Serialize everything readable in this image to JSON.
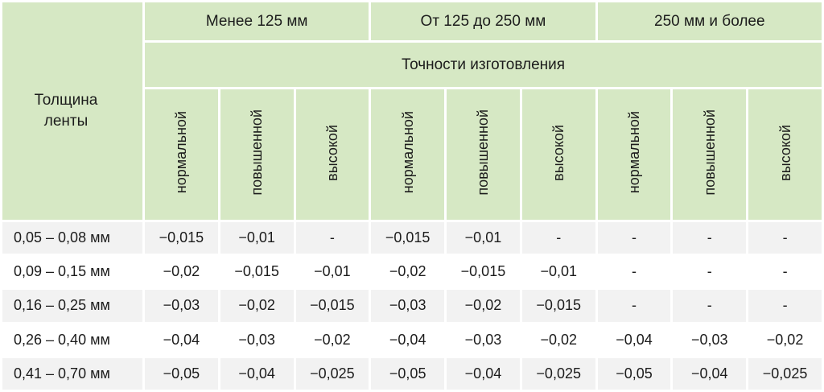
{
  "chart_data": {
    "type": "table",
    "corner_header": "Толщина ленты",
    "column_groups": [
      "Менее 125 мм",
      "От 125 до 250 мм",
      "250 мм и более"
    ],
    "accuracy_header": "Точности изготовления",
    "accuracy_levels": [
      "нормальной",
      "повышенной",
      "высокой"
    ],
    "rows": [
      {
        "label": "0,05 – 0,08 мм",
        "values": [
          "−0,015",
          "−0,01",
          "-",
          "−0,015",
          "−0,01",
          "-",
          "-",
          "-",
          "-"
        ]
      },
      {
        "label": "0,09 – 0,15 мм",
        "values": [
          "−0,02",
          "−0,015",
          "−0,01",
          "−0,02",
          "−0,015",
          "−0,01",
          "-",
          "-",
          "-"
        ]
      },
      {
        "label": "0,16 – 0,25 мм",
        "values": [
          "−0,03",
          "−0,02",
          "−0,015",
          "−0,03",
          "−0,02",
          "−0,015",
          "-",
          "-",
          "-"
        ]
      },
      {
        "label": "0,26 – 0,40 мм",
        "values": [
          "−0,04",
          "−0,03",
          "−0,02",
          "−0,04",
          "−0,03",
          "−0,02",
          "−0,04",
          "−0,03",
          "−0,02"
        ]
      },
      {
        "label": "0,41 – 0,70 мм",
        "values": [
          "−0,05",
          "−0,04",
          "−0,025",
          "−0,05",
          "−0,04",
          "−0,025",
          "−0,05",
          "−0,04",
          "−0,025"
        ]
      }
    ],
    "layout_hints": {
      "columns_per_group": 3,
      "data_row_striping": "odd rows gray, even rows white"
    }
  },
  "colors": {
    "header_bg": "#d6e8c4",
    "row_alt_bg": "#f2f2f2",
    "row_bg": "#ffffff",
    "border": "#ffffff",
    "text": "#1c1c1c"
  }
}
